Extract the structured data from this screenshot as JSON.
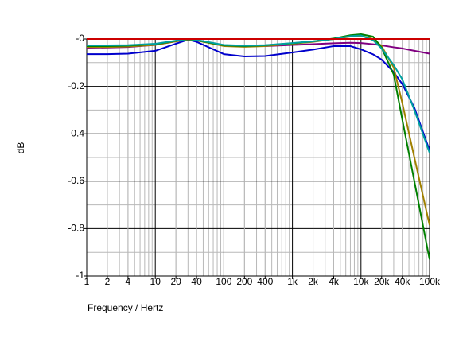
{
  "chart_data": {
    "type": "line",
    "y_label": "dB",
    "x_label": "Frequency / Hertz",
    "x_log": true,
    "grid": true,
    "x": [
      1,
      2,
      4,
      10,
      20,
      30,
      40,
      100,
      200,
      400,
      1000,
      2000,
      4000,
      7000,
      10000,
      15000,
      20000,
      30000,
      40000,
      60000,
      100000
    ],
    "series": [
      {
        "color": "#0000cc",
        "values": [
          -0.064,
          -0.064,
          -0.062,
          -0.05,
          -0.02,
          -0.003,
          -0.012,
          -0.064,
          -0.074,
          -0.072,
          -0.057,
          -0.045,
          -0.03,
          -0.03,
          -0.044,
          -0.065,
          -0.087,
          -0.14,
          -0.19,
          -0.29,
          -0.47
        ]
      },
      {
        "color": "#800080",
        "values": [
          -0.037,
          -0.036,
          -0.034,
          -0.025,
          -0.01,
          -0.002,
          -0.006,
          -0.027,
          -0.03,
          -0.03,
          -0.025,
          -0.022,
          -0.018,
          -0.016,
          -0.017,
          -0.022,
          -0.027,
          -0.035,
          -0.04,
          -0.05,
          -0.062
        ]
      },
      {
        "color": "#a08000",
        "values": [
          -0.034,
          -0.034,
          -0.032,
          -0.025,
          -0.01,
          -0.002,
          -0.006,
          -0.03,
          -0.033,
          -0.03,
          -0.02,
          -0.012,
          0,
          0.01,
          0.013,
          0,
          -0.03,
          -0.12,
          -0.27,
          -0.5,
          -0.785
        ]
      },
      {
        "color": "#008000",
        "values": [
          -0.03,
          -0.03,
          -0.028,
          -0.022,
          -0.008,
          -0.001,
          -0.005,
          -0.027,
          -0.03,
          -0.027,
          -0.018,
          -0.01,
          0.002,
          0.016,
          0.02,
          0.01,
          -0.037,
          -0.15,
          -0.34,
          -0.6,
          -0.93
        ]
      },
      {
        "color": "#00a0a0",
        "values": [
          -0.027,
          -0.027,
          -0.026,
          -0.02,
          -0.007,
          0,
          -0.004,
          -0.025,
          -0.028,
          -0.026,
          -0.017,
          -0.01,
          0,
          0.012,
          0.015,
          -0.005,
          -0.04,
          -0.11,
          -0.17,
          -0.3,
          -0.48
        ]
      },
      {
        "color": "#cc0000",
        "values": [
          0,
          0,
          0,
          0,
          0,
          0,
          0,
          0,
          0,
          0,
          0,
          0,
          0,
          0,
          0,
          0,
          0,
          0,
          0,
          0,
          0
        ]
      }
    ],
    "xlim": [
      1,
      100000
    ],
    "xticks": [
      1,
      2,
      4,
      10,
      20,
      40,
      100,
      200,
      400,
      {
        "value": 1000,
        "label": "1k"
      },
      {
        "value": 2000,
        "label": "2k"
      },
      {
        "value": 4000,
        "label": "4k"
      },
      {
        "value": 10000,
        "label": "10k"
      },
      {
        "value": 20000,
        "label": "20k"
      },
      {
        "value": 40000,
        "label": "40k"
      },
      {
        "value": 100000,
        "label": "100k"
      }
    ],
    "ylim": [
      -1,
      0
    ],
    "yticks": [
      -1,
      -0.8,
      -0.6,
      -0.4,
      -0.2,
      {
        "value": 0,
        "label": "-0"
      }
    ]
  }
}
